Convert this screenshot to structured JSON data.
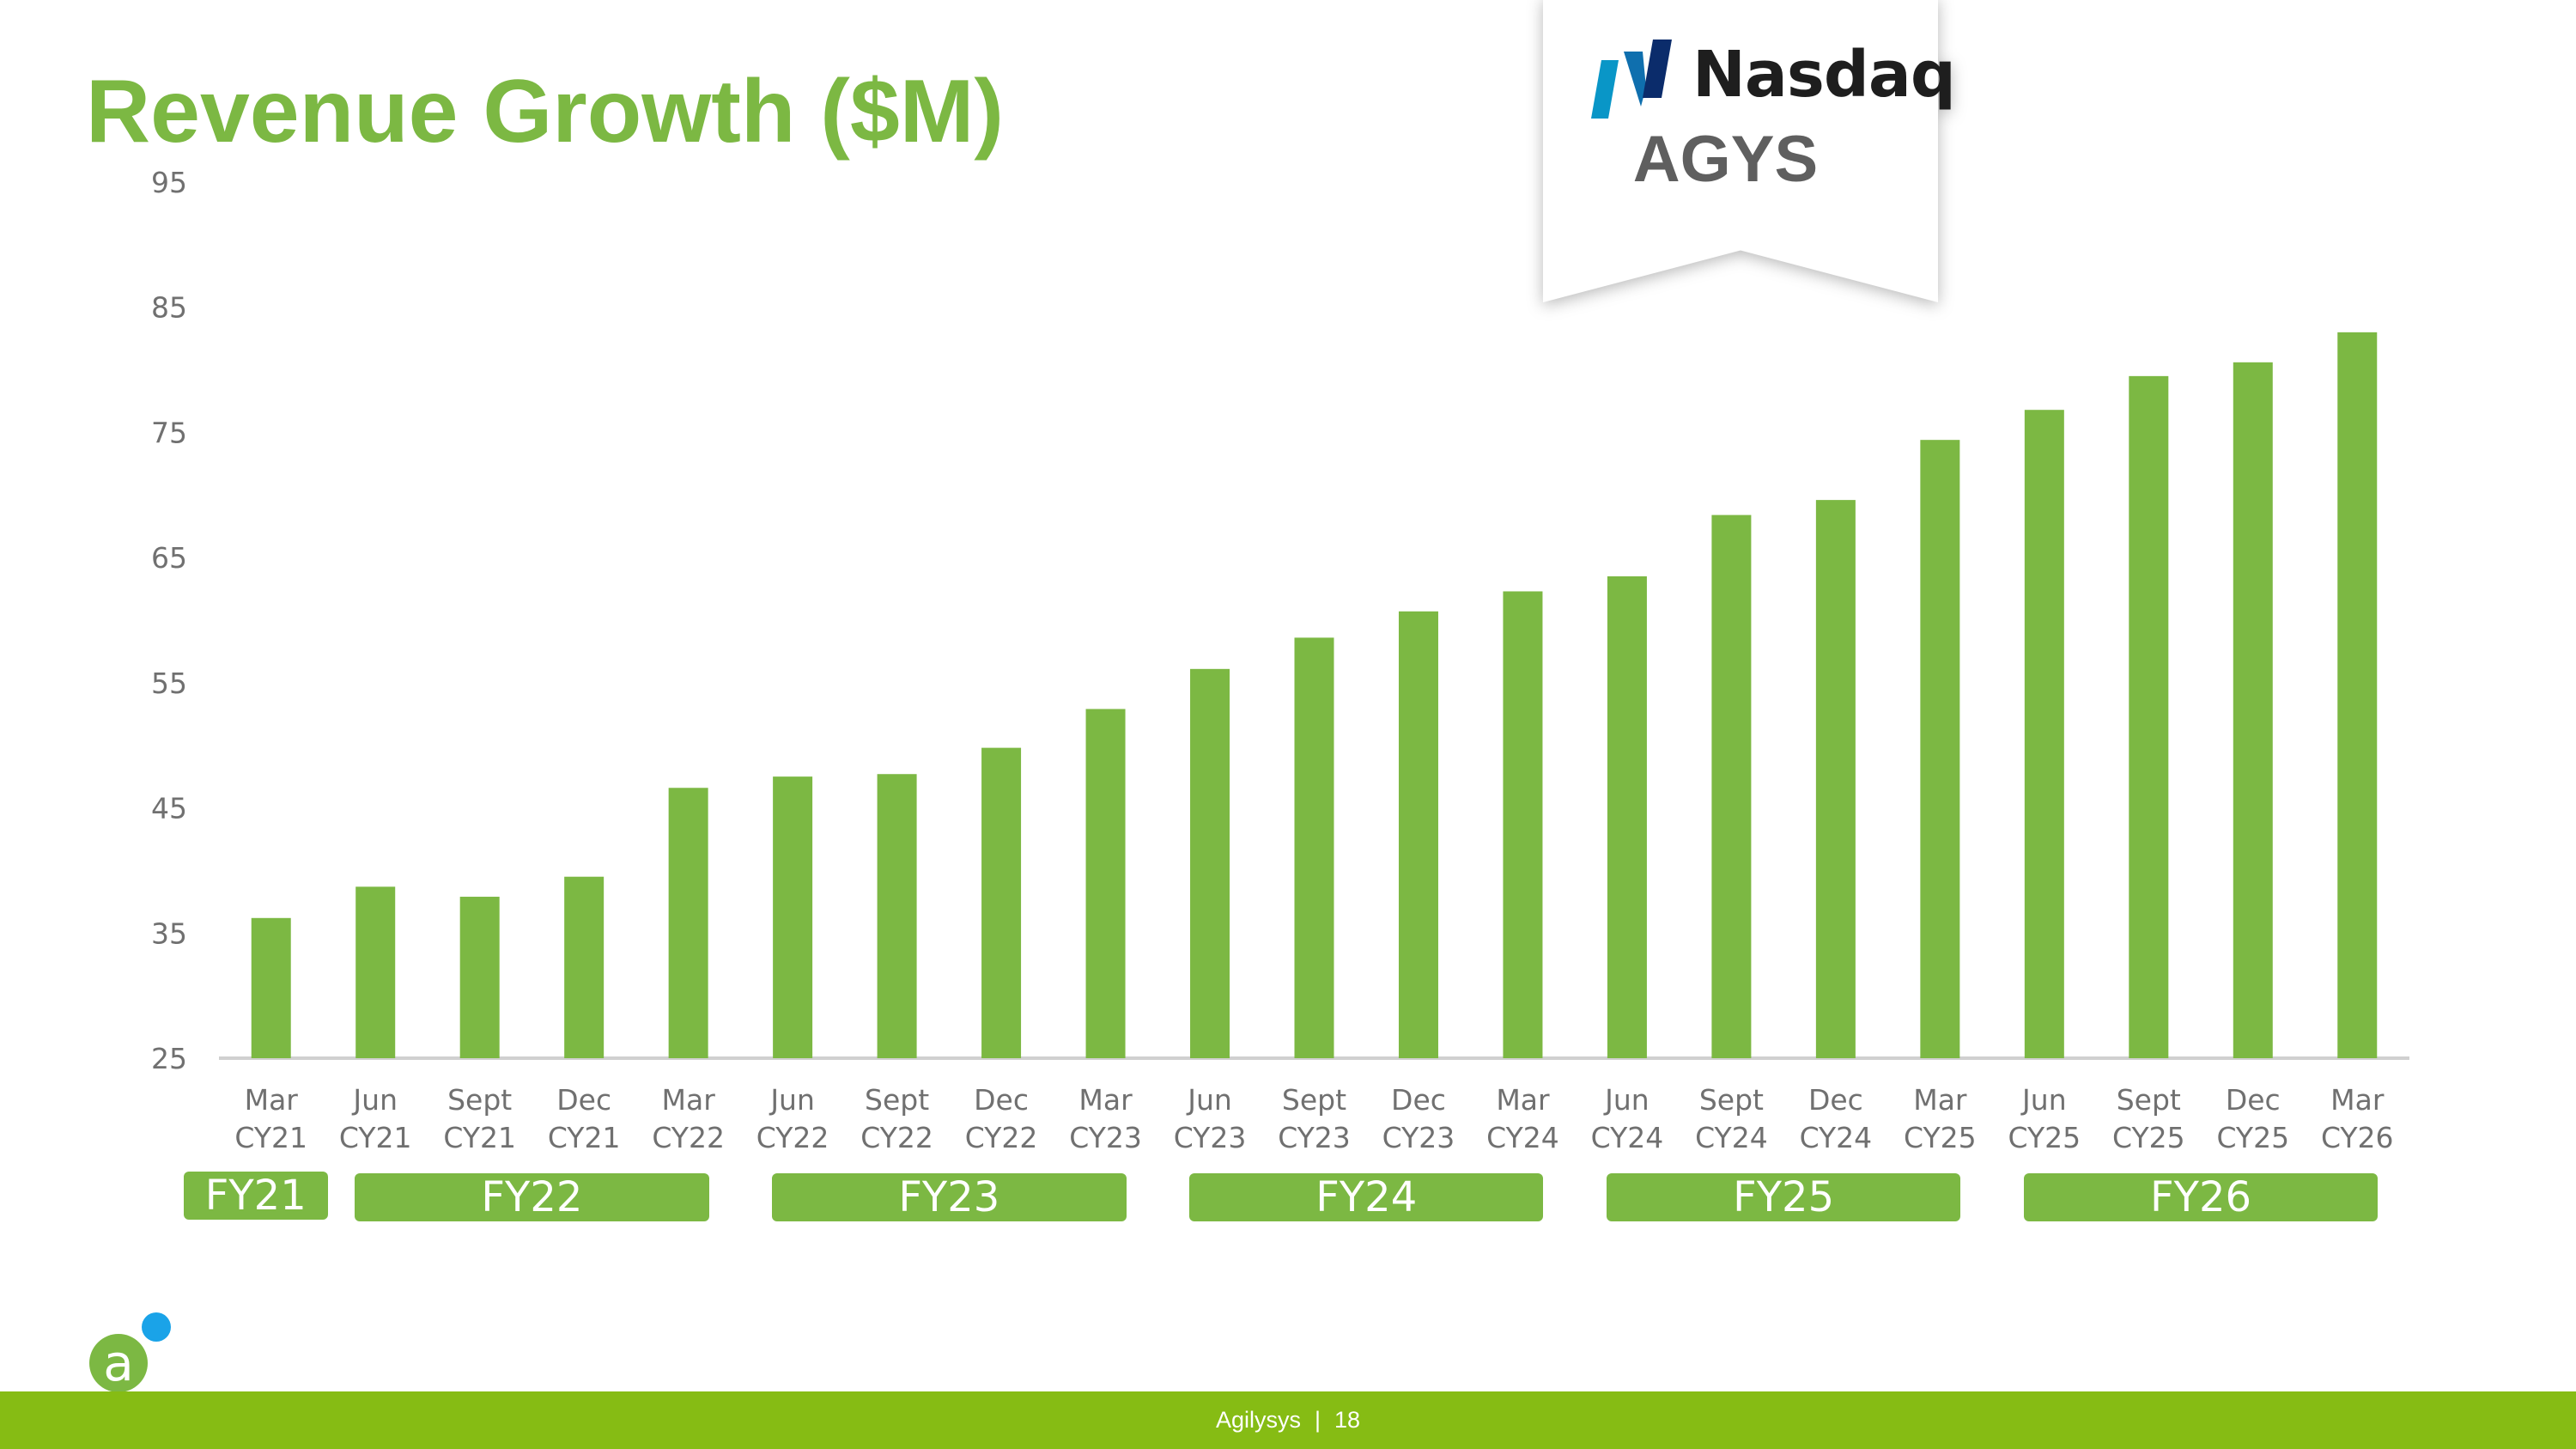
{
  "slide": {
    "title": "Revenue Growth ($M)",
    "footer_company": "Agilysys",
    "footer_separator": "|",
    "page_number": "18"
  },
  "nasdaq_badge": {
    "exchange": "Nasdaq",
    "ticker": "AGYS"
  },
  "colors": {
    "bar": "#7cb843",
    "title": "#7cb843",
    "fiscal_box": "#7cb843",
    "footer_bar": "#86bc14",
    "logo_accent": "#1aa3e8"
  },
  "chart_data": {
    "type": "bar",
    "title": "Revenue Growth ($M)",
    "xlabel": "",
    "ylabel": "",
    "ylim": [
      25,
      95
    ],
    "yticks": [
      25,
      35,
      45,
      55,
      65,
      75,
      85,
      95
    ],
    "grid": false,
    "categories": [
      [
        "Mar",
        "CY21"
      ],
      [
        "Jun",
        "CY21"
      ],
      [
        "Sept",
        "CY21"
      ],
      [
        "Dec",
        "CY21"
      ],
      [
        "Mar",
        "CY22"
      ],
      [
        "Jun",
        "CY22"
      ],
      [
        "Sept",
        "CY22"
      ],
      [
        "Dec",
        "CY22"
      ],
      [
        "Mar",
        "CY23"
      ],
      [
        "Jun",
        "CY23"
      ],
      [
        "Sept",
        "CY23"
      ],
      [
        "Dec",
        "CY23"
      ],
      [
        "Mar",
        "CY24"
      ],
      [
        "Jun",
        "CY24"
      ],
      [
        "Sept",
        "CY24"
      ],
      [
        "Dec",
        "CY24"
      ],
      [
        "Mar",
        "CY25"
      ],
      [
        "Jun",
        "CY25"
      ],
      [
        "Sept",
        "CY25"
      ],
      [
        "Dec",
        "CY25"
      ],
      [
        "Mar",
        "CY26"
      ]
    ],
    "values": [
      36.2,
      38.7,
      37.9,
      39.5,
      46.6,
      47.5,
      47.7,
      49.8,
      52.9,
      56.1,
      58.6,
      60.7,
      62.3,
      63.5,
      68.4,
      69.6,
      74.4,
      76.8,
      79.5,
      80.6,
      83.0
    ],
    "fiscal_years": [
      {
        "label": "FY21",
        "first": 0,
        "last": 0
      },
      {
        "label": "FY22",
        "first": 1,
        "last": 4
      },
      {
        "label": "FY23",
        "first": 5,
        "last": 8
      },
      {
        "label": "FY24",
        "first": 9,
        "last": 12
      },
      {
        "label": "FY25",
        "first": 13,
        "last": 16
      },
      {
        "label": "FY26",
        "first": 17,
        "last": 20
      }
    ]
  }
}
